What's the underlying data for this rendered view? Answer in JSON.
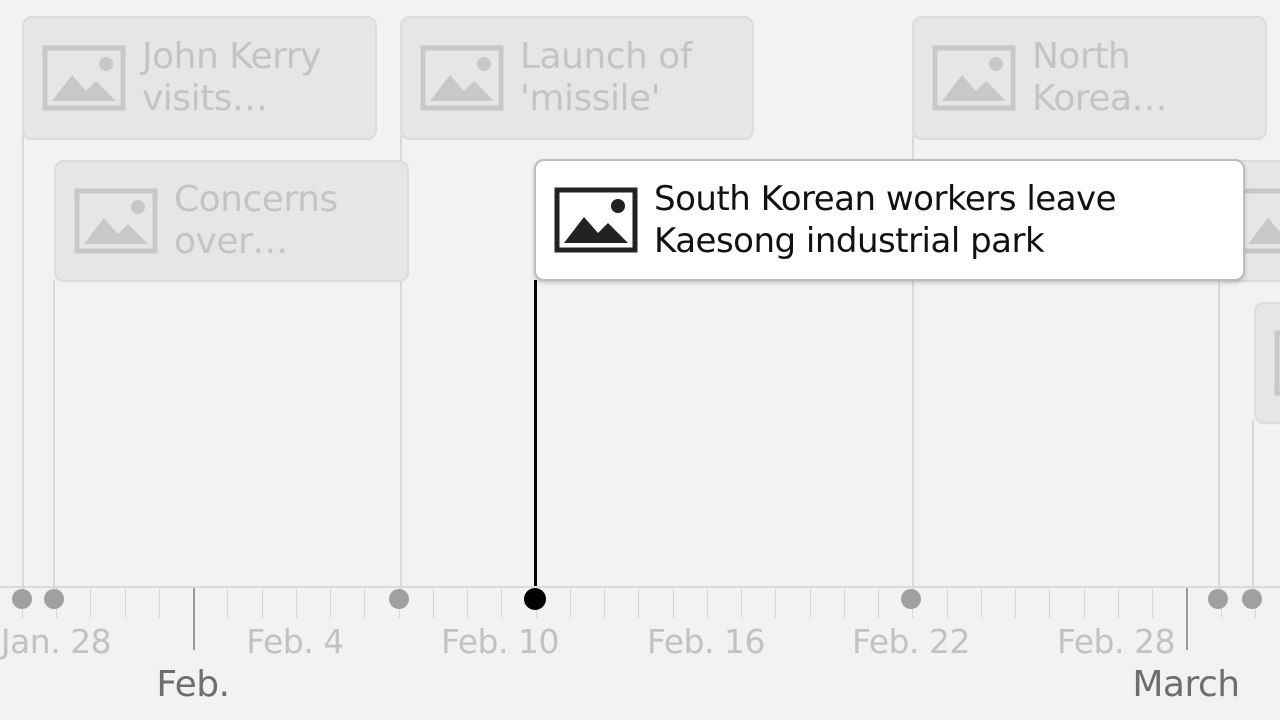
{
  "events": [
    {
      "label_lines": [
        "John Kerry",
        "visits…"
      ],
      "active": false
    },
    {
      "label_lines": [
        "Concerns",
        "over…"
      ],
      "active": false
    },
    {
      "label_lines": [
        "Launch of",
        "'missile'"
      ],
      "active": false
    },
    {
      "label_lines": [
        "South Korean workers leave",
        "Kaesong industrial park"
      ],
      "active": true
    },
    {
      "label_lines": [
        "North",
        "Korea…"
      ],
      "active": false
    },
    {
      "label_lines": [],
      "active": false
    },
    {
      "label_lines": [],
      "active": false
    }
  ],
  "axis": {
    "day_labels": [
      "Jan. 28",
      "Feb. 4",
      "Feb. 10",
      "Feb. 16",
      "Feb. 22",
      "Feb. 28"
    ],
    "month_labels": [
      "Feb.",
      "March"
    ]
  },
  "icons": {
    "card_thumb": "image-placeholder-icon"
  },
  "colors": {
    "active_stem": "#000000",
    "inactive_stem": "#d9d9d9",
    "background": "#f2f2f2"
  }
}
